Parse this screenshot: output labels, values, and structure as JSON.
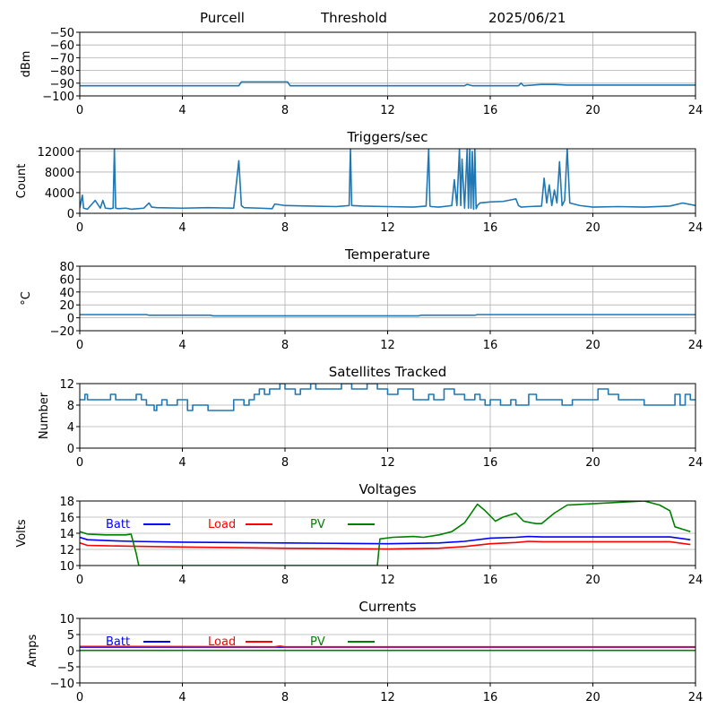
{
  "header": {
    "station": "Purcell",
    "mode": "Threshold",
    "date": "2025/06/21"
  },
  "colors": {
    "series": "#1f77b4",
    "batt": "#0000ff",
    "load": "#ff0000",
    "pv": "#008000",
    "grid": "#b0b0b0"
  },
  "chart_data": [
    {
      "type": "line",
      "title": "",
      "ylabel": "dBm",
      "xlim": [
        0,
        24
      ],
      "xticks": [
        "0",
        "4",
        "8",
        "12",
        "16",
        "20",
        "24"
      ],
      "ylim": [
        -100,
        -50
      ],
      "yticks": [
        "-100",
        "-90",
        "-80",
        "-70",
        "-60",
        "-50"
      ],
      "grid": true,
      "series": [
        {
          "color": "#1f77b4",
          "x": [
            0,
            6.2,
            6.3,
            8.1,
            8.2,
            15.0,
            15.1,
            15.3,
            17.1,
            17.2,
            17.3,
            18.0,
            18.5,
            19.0,
            24
          ],
          "y": [
            -92,
            -92,
            -89,
            -89,
            -92,
            -92,
            -91,
            -92,
            -92,
            -90,
            -92,
            -91,
            -91,
            -91.5,
            -91.5
          ]
        }
      ]
    },
    {
      "type": "line",
      "title": "Triggers/sec",
      "ylabel": "Count",
      "xlim": [
        0,
        24
      ],
      "xticks": [
        "0",
        "4",
        "8",
        "12",
        "16",
        "20",
        "24"
      ],
      "ylim": [
        0,
        12500
      ],
      "yticks": [
        "0",
        "4000",
        "8000",
        "12000"
      ],
      "grid": true,
      "series": [
        {
          "color": "#1f77b4",
          "x": [
            0,
            0.1,
            0.15,
            0.3,
            0.6,
            0.8,
            0.9,
            1.0,
            1.2,
            1.3,
            1.35,
            1.4,
            1.5,
            1.8,
            2.0,
            2.5,
            2.7,
            2.8,
            3.0,
            4.0,
            5.0,
            6.0,
            6.2,
            6.3,
            6.4,
            7.0,
            7.5,
            7.6,
            8.0,
            9.0,
            10.0,
            10.5,
            10.55,
            10.6,
            11.0,
            12.0,
            13.0,
            13.5,
            13.6,
            13.65,
            13.7,
            14.0,
            14.5,
            14.6,
            14.7,
            14.8,
            14.85,
            14.9,
            15.0,
            15.1,
            15.15,
            15.2,
            15.25,
            15.3,
            15.35,
            15.4,
            15.45,
            15.5,
            15.6,
            16.0,
            16.5,
            17.0,
            17.1,
            17.2,
            17.5,
            18.0,
            18.1,
            18.2,
            18.3,
            18.4,
            18.5,
            18.6,
            18.7,
            18.8,
            18.9,
            19.0,
            19.1,
            19.5,
            20.0,
            21.0,
            22.0,
            23.0,
            23.5,
            24
          ],
          "y": [
            1000,
            3500,
            1000,
            800,
            2500,
            1000,
            2500,
            1000,
            900,
            1000,
            12500,
            1000,
            900,
            1000,
            800,
            1000,
            2000,
            1200,
            1100,
            1000,
            1100,
            1000,
            10200,
            1500,
            1100,
            1000,
            900,
            1800,
            1500,
            1400,
            1300,
            1500,
            12500,
            1500,
            1400,
            1300,
            1200,
            1400,
            12500,
            1400,
            1300,
            1200,
            1500,
            6500,
            1500,
            12500,
            1500,
            10500,
            1000,
            12500,
            1000,
            12500,
            1000,
            12000,
            800,
            12500,
            900,
            1500,
            2000,
            2200,
            2300,
            2800,
            1500,
            1200,
            1300,
            1400,
            6800,
            2000,
            5500,
            1500,
            4500,
            2000,
            10000,
            1500,
            2500,
            12500,
            2000,
            1500,
            1200,
            1300,
            1200,
            1400,
            2000,
            1500
          ]
        }
      ]
    },
    {
      "type": "line",
      "title": "Temperature",
      "ylabel": "°C",
      "xlim": [
        0,
        24
      ],
      "xticks": [
        "0",
        "4",
        "8",
        "12",
        "16",
        "20",
        "24"
      ],
      "ylim": [
        -20,
        80
      ],
      "yticks": [
        "-20",
        "0",
        "20",
        "40",
        "60",
        "80"
      ],
      "grid": true,
      "series": [
        {
          "color": "#1f77b4",
          "x": [
            0,
            2.6,
            2.7,
            5.1,
            5.2,
            13.2,
            13.3,
            15.4,
            15.5,
            24
          ],
          "y": [
            5,
            5,
            4,
            4,
            3,
            3,
            4,
            4,
            5,
            5
          ]
        }
      ]
    },
    {
      "type": "line",
      "title": "Satellites Tracked",
      "ylabel": "Number",
      "xlim": [
        0,
        24
      ],
      "xticks": [
        "0",
        "4",
        "8",
        "12",
        "16",
        "20",
        "24"
      ],
      "ylim": [
        0,
        12
      ],
      "yticks": [
        "0",
        "4",
        "8",
        "12"
      ],
      "grid": true,
      "series": [
        {
          "color": "#1f77b4",
          "step": true,
          "x": [
            0,
            0.2,
            0.3,
            0.7,
            1.2,
            1.4,
            2.2,
            2.4,
            2.6,
            2.9,
            3.0,
            3.2,
            3.4,
            3.6,
            3.8,
            4.2,
            4.4,
            4.6,
            5.0,
            5.6,
            6.0,
            6.4,
            6.6,
            6.8,
            7.0,
            7.2,
            7.4,
            7.8,
            8.0,
            8.4,
            8.6,
            9.0,
            9.2,
            10.0,
            10.2,
            10.6,
            11.0,
            11.2,
            11.6,
            12.0,
            12.4,
            13.0,
            13.6,
            13.8,
            14.2,
            14.6,
            14.8,
            15.0,
            15.4,
            15.6,
            15.8,
            16.0,
            16.4,
            16.8,
            17.0,
            17.5,
            17.8,
            18.4,
            18.8,
            19.2,
            19.6,
            20.2,
            20.6,
            21.0,
            22.0,
            22.6,
            23.2,
            23.4,
            23.6,
            23.8,
            24
          ],
          "y": [
            9,
            10,
            9,
            9,
            10,
            9,
            10,
            9,
            8,
            7,
            8,
            9,
            8,
            8,
            9,
            7,
            8,
            8,
            7,
            7,
            9,
            8,
            9,
            10,
            11,
            10,
            11,
            12,
            11,
            10,
            11,
            12,
            11,
            11,
            12,
            11,
            11,
            12,
            11,
            10,
            11,
            9,
            10,
            9,
            11,
            10,
            10,
            9,
            10,
            9,
            8,
            9,
            8,
            9,
            8,
            10,
            9,
            9,
            8,
            9,
            9,
            11,
            10,
            9,
            8,
            8,
            10,
            8,
            10,
            9,
            9
          ]
        }
      ]
    },
    {
      "type": "line",
      "title": "Voltages",
      "ylabel": "Volts",
      "xlim": [
        0,
        24
      ],
      "xticks": [
        "0",
        "4",
        "8",
        "12",
        "16",
        "20",
        "24"
      ],
      "ylim": [
        10,
        18
      ],
      "yticks": [
        "10",
        "12",
        "14",
        "16",
        "18"
      ],
      "grid": true,
      "legend_placement": "top-left",
      "series": [
        {
          "name": "Batt",
          "color": "#0000ff",
          "x": [
            0,
            0.3,
            1.0,
            2.0,
            4.0,
            8.0,
            10.0,
            12.0,
            14.0,
            15.0,
            16.0,
            17.0,
            17.5,
            18.0,
            20.0,
            22.0,
            23.0,
            23.8
          ],
          "y": [
            13.5,
            13.2,
            13.1,
            13.0,
            12.9,
            12.8,
            12.75,
            12.7,
            12.8,
            13.0,
            13.4,
            13.5,
            13.6,
            13.55,
            13.55,
            13.55,
            13.55,
            13.2
          ]
        },
        {
          "name": "Load",
          "color": "#ff0000",
          "x": [
            0,
            0.3,
            1.0,
            2.0,
            4.0,
            8.0,
            10.0,
            12.0,
            14.0,
            15.0,
            16.0,
            17.0,
            17.5,
            18.0,
            20.0,
            22.0,
            23.0,
            23.8
          ],
          "y": [
            12.8,
            12.5,
            12.45,
            12.4,
            12.3,
            12.15,
            12.1,
            12.05,
            12.15,
            12.35,
            12.7,
            12.85,
            13.0,
            12.95,
            12.95,
            12.95,
            12.95,
            12.6
          ]
        },
        {
          "name": "PV",
          "color": "#008000",
          "x": [
            0,
            0.3,
            1.0,
            1.8,
            2.0,
            2.2,
            2.3,
            11.6,
            11.7,
            12.2,
            12.6,
            13.0,
            13.4,
            14.0,
            14.5,
            15.0,
            15.5,
            15.8,
            16.2,
            16.5,
            17.0,
            17.3,
            17.6,
            17.8,
            18.0,
            18.5,
            19.0,
            22.0,
            22.6,
            23.0,
            23.2,
            23.5,
            23.8
          ],
          "y": [
            14.2,
            13.9,
            13.8,
            13.8,
            13.9,
            11.5,
            10,
            10,
            13.3,
            13.5,
            13.55,
            13.6,
            13.5,
            13.8,
            14.2,
            15.3,
            17.6,
            16.8,
            15.5,
            16.0,
            16.5,
            15.5,
            15.3,
            15.2,
            15.2,
            16.5,
            17.5,
            18,
            17.5,
            16.8,
            14.8,
            14.5,
            14.2
          ]
        }
      ]
    },
    {
      "type": "line",
      "title": "Currents",
      "ylabel": "Amps",
      "xlim": [
        0,
        24
      ],
      "xticks": [
        "0",
        "4",
        "8",
        "12",
        "16",
        "20",
        "24"
      ],
      "ylim": [
        -10,
        10
      ],
      "yticks": [
        "-10",
        "-5",
        "0",
        "5",
        "10"
      ],
      "grid": true,
      "legend_placement": "top-left",
      "series": [
        {
          "name": "Batt",
          "color": "#0000ff",
          "x": [
            0,
            24
          ],
          "y": [
            1.1,
            1.1
          ]
        },
        {
          "name": "Load",
          "color": "#ff0000",
          "x": [
            0,
            2,
            7.6,
            7.8,
            8,
            24
          ],
          "y": [
            1.3,
            1.3,
            1.2,
            1.4,
            1.2,
            1.2
          ]
        },
        {
          "name": "PV",
          "color": "#008000",
          "x": [
            0,
            24
          ],
          "y": [
            0.1,
            0.1
          ]
        }
      ]
    }
  ]
}
